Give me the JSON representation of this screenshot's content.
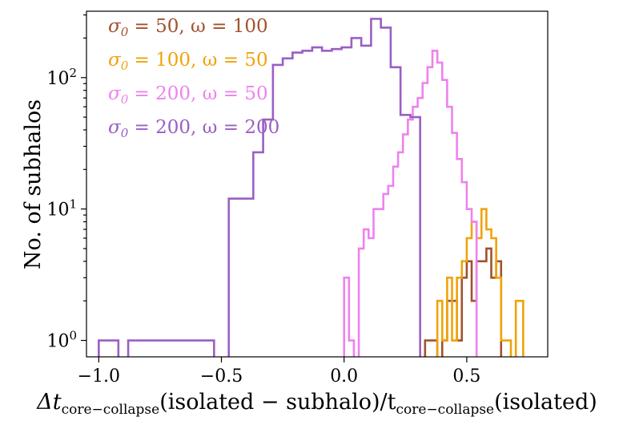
{
  "chart_data": {
    "type": "histogram",
    "title": "",
    "xlabel": "Δt_core−collapse(isolated − subhalo)/t_core−collapse(isolated)",
    "ylabel": "No. of subhalos",
    "xlim": [
      -1.05,
      0.83
    ],
    "ylim": [
      0.75,
      320
    ],
    "yscale": "log",
    "grid": false,
    "legend_position": "top-left",
    "x_ticks": [
      {
        "value": -1.0,
        "label": "−1.0"
      },
      {
        "value": -0.5,
        "label": "−0.5"
      },
      {
        "value": 0.0,
        "label": "0.0"
      },
      {
        "value": 0.5,
        "label": "0.5"
      }
    ],
    "y_ticks": [
      {
        "value": 1,
        "base": "10",
        "exp": "0"
      },
      {
        "value": 10,
        "base": "10",
        "exp": "1"
      },
      {
        "value": 100,
        "base": "10",
        "exp": "2"
      }
    ],
    "series": [
      {
        "name": "σ0 = 50, ω = 100",
        "color": "#a0522d",
        "bins": [
          [
            0.33,
            0.38,
            1
          ],
          [
            0.38,
            0.4,
            0
          ],
          [
            0.4,
            0.42,
            1
          ],
          [
            0.42,
            0.44,
            2
          ],
          [
            0.44,
            0.46,
            2
          ],
          [
            0.46,
            0.48,
            1
          ],
          [
            0.48,
            0.5,
            3
          ],
          [
            0.5,
            0.52,
            4
          ],
          [
            0.52,
            0.54,
            2
          ],
          [
            0.54,
            0.56,
            4
          ],
          [
            0.56,
            0.58,
            4
          ],
          [
            0.58,
            0.6,
            5
          ],
          [
            0.6,
            0.62,
            3
          ],
          [
            0.62,
            0.64,
            4
          ]
        ]
      },
      {
        "name": "σ0 = 100, ω = 50",
        "color": "#f0a30a",
        "bins": [
          [
            0.36,
            0.38,
            0
          ],
          [
            0.38,
            0.4,
            2
          ],
          [
            0.4,
            0.42,
            1
          ],
          [
            0.42,
            0.44,
            3
          ],
          [
            0.44,
            0.46,
            1
          ],
          [
            0.46,
            0.48,
            3
          ],
          [
            0.48,
            0.5,
            4
          ],
          [
            0.5,
            0.52,
            6
          ],
          [
            0.52,
            0.54,
            8
          ],
          [
            0.54,
            0.56,
            6
          ],
          [
            0.56,
            0.58,
            10
          ],
          [
            0.58,
            0.6,
            7
          ],
          [
            0.6,
            0.62,
            6
          ],
          [
            0.62,
            0.64,
            3
          ],
          [
            0.64,
            0.66,
            1
          ],
          [
            0.66,
            0.68,
            1
          ],
          [
            0.68,
            0.7,
            0
          ],
          [
            0.7,
            0.73,
            2
          ]
        ]
      },
      {
        "name": "σ0 = 200, ω = 50",
        "color": "#ee82ee",
        "bins": [
          [
            0.0,
            0.02,
            3
          ],
          [
            0.02,
            0.04,
            1
          ],
          [
            0.04,
            0.06,
            0
          ],
          [
            0.06,
            0.08,
            5
          ],
          [
            0.08,
            0.1,
            7
          ],
          [
            0.1,
            0.12,
            6
          ],
          [
            0.12,
            0.14,
            10
          ],
          [
            0.14,
            0.16,
            10
          ],
          [
            0.16,
            0.18,
            13
          ],
          [
            0.18,
            0.2,
            15
          ],
          [
            0.2,
            0.22,
            21
          ],
          [
            0.22,
            0.24,
            27
          ],
          [
            0.24,
            0.26,
            37
          ],
          [
            0.26,
            0.28,
            48
          ],
          [
            0.28,
            0.3,
            60
          ],
          [
            0.3,
            0.32,
            70
          ],
          [
            0.32,
            0.34,
            91
          ],
          [
            0.34,
            0.36,
            120
          ],
          [
            0.36,
            0.38,
            160
          ],
          [
            0.38,
            0.4,
            130
          ],
          [
            0.4,
            0.42,
            96
          ],
          [
            0.42,
            0.44,
            60
          ],
          [
            0.44,
            0.46,
            38
          ],
          [
            0.46,
            0.48,
            24
          ],
          [
            0.48,
            0.5,
            16
          ],
          [
            0.5,
            0.52,
            10
          ],
          [
            0.52,
            0.54,
            8
          ]
        ]
      },
      {
        "name": "σ0 = 200, ω = 200",
        "color": "#9a5fc4",
        "bins": [
          [
            -1.0,
            -0.92,
            1
          ],
          [
            -0.92,
            -0.88,
            0
          ],
          [
            -0.88,
            -0.53,
            1
          ],
          [
            -0.53,
            -0.47,
            0
          ],
          [
            -0.47,
            -0.37,
            12
          ],
          [
            -0.37,
            -0.33,
            27
          ],
          [
            -0.33,
            -0.29,
            48
          ],
          [
            -0.29,
            -0.25,
            125
          ],
          [
            -0.25,
            -0.21,
            140
          ],
          [
            -0.21,
            -0.17,
            155
          ],
          [
            -0.17,
            -0.13,
            160
          ],
          [
            -0.13,
            -0.09,
            170
          ],
          [
            -0.09,
            -0.05,
            160
          ],
          [
            -0.05,
            -0.01,
            165
          ],
          [
            -0.01,
            0.03,
            170
          ],
          [
            0.03,
            0.07,
            200
          ],
          [
            0.07,
            0.11,
            175
          ],
          [
            0.11,
            0.15,
            280
          ],
          [
            0.15,
            0.19,
            240
          ],
          [
            0.19,
            0.23,
            120
          ],
          [
            0.23,
            0.27,
            52
          ],
          [
            0.27,
            0.31,
            50
          ]
        ]
      }
    ]
  },
  "legend_labels": [
    {
      "sigma": "σ",
      "sub": "0",
      "rest": " = 50, ω = 100"
    },
    {
      "sigma": "σ",
      "sub": "0",
      "rest": " = 100, ω = 50"
    },
    {
      "sigma": "σ",
      "sub": "0",
      "rest": " = 200, ω = 50"
    },
    {
      "sigma": "σ",
      "sub": "0",
      "rest": " = 200, ω = 200"
    }
  ],
  "xlabel_parts": {
    "delta_t": "Δt",
    "sub1": "core−collapse",
    "mid": "(isolated − subhalo)/t",
    "sub2": "core−collapse",
    "tail": "(isolated)"
  }
}
